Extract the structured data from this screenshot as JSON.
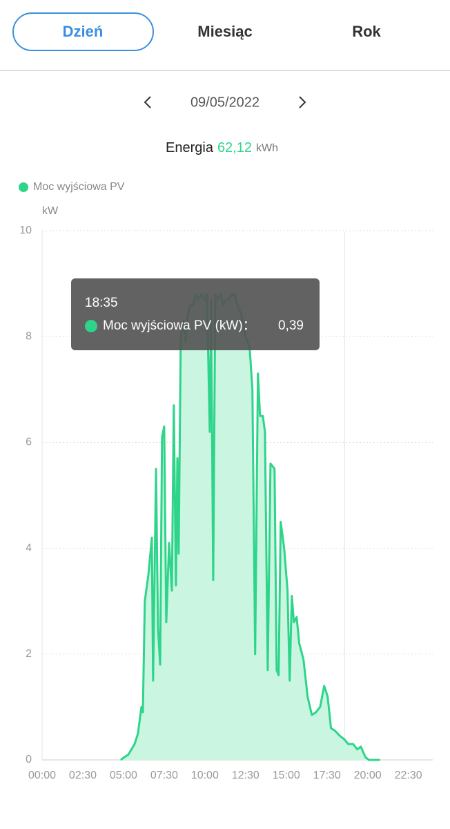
{
  "tabs": [
    "Dzień",
    "Miesiąc",
    "Rok"
  ],
  "date": "09/05/2022",
  "energy": {
    "label": "Energia",
    "value": "62,12",
    "unit": "kWh"
  },
  "chart_data": {
    "type": "area",
    "y_label": "kW",
    "xlim": [
      0,
      24
    ],
    "xticks": [
      {
        "value": 0,
        "label": "00:00"
      },
      {
        "value": 2.5,
        "label": "02:30"
      },
      {
        "value": 5,
        "label": "05:00"
      },
      {
        "value": 7.5,
        "label": "07:30"
      },
      {
        "value": 10,
        "label": "10:00"
      },
      {
        "value": 12.5,
        "label": "12:30"
      },
      {
        "value": 15,
        "label": "15:00"
      },
      {
        "value": 17.5,
        "label": "17:30"
      },
      {
        "value": 20,
        "label": "20:00"
      },
      {
        "value": 22.5,
        "label": "22:30"
      }
    ],
    "ylim": [
      0,
      10
    ],
    "yticks": [
      0,
      2,
      4,
      6,
      8,
      10
    ],
    "grid": true,
    "x": [
      4.83,
      5.04,
      5.3,
      5.68,
      5.89,
      6.1,
      6.19,
      6.31,
      6.53,
      6.74,
      6.82,
      7.0,
      7.12,
      7.25,
      7.37,
      7.5,
      7.63,
      7.8,
      7.97,
      8.09,
      8.22,
      8.31,
      8.39,
      8.52,
      8.69,
      8.81,
      8.94,
      9.11,
      9.28,
      9.45,
      9.62,
      9.79,
      9.96,
      10.13,
      10.3,
      10.38,
      10.51,
      10.64,
      10.8,
      10.97,
      11.14,
      11.31,
      11.48,
      11.65,
      11.82,
      11.99,
      12.25,
      12.5,
      12.75,
      12.92,
      13.09,
      13.26,
      13.39,
      13.56,
      13.69,
      13.86,
      14.03,
      14.28,
      14.41,
      14.53,
      14.66,
      14.87,
      15.08,
      15.21,
      15.34,
      15.47,
      15.64,
      15.8,
      16.06,
      16.31,
      16.57,
      16.82,
      17.08,
      17.33,
      17.54,
      17.75,
      18.0,
      18.31,
      18.56,
      18.81,
      19.11,
      19.36,
      19.58,
      19.87,
      20.08,
      20.76
    ],
    "series": [
      {
        "name": "Moc wyjściowa PV",
        "color": "#2ed48a",
        "fill": "#c9f5e1",
        "values": [
          0,
          0.05,
          0.1,
          0.3,
          0.5,
          1.0,
          0.9,
          3.0,
          3.5,
          4.2,
          1.5,
          5.5,
          2.5,
          1.8,
          6.1,
          6.3,
          2.6,
          4.1,
          3.2,
          6.7,
          3.3,
          5.7,
          3.9,
          8.0,
          8.3,
          7.9,
          8.4,
          8.6,
          8.6,
          8.8,
          8.7,
          8.8,
          8.7,
          8.8,
          6.2,
          8.7,
          3.4,
          8.8,
          8.7,
          8.8,
          8.6,
          8.7,
          8.7,
          8.8,
          8.8,
          8.6,
          8.4,
          8.0,
          7.8,
          7.0,
          2.0,
          7.3,
          6.5,
          6.5,
          6.2,
          1.7,
          5.6,
          5.5,
          1.7,
          1.6,
          4.5,
          4.0,
          3.2,
          1.5,
          3.1,
          2.6,
          2.7,
          2.2,
          1.9,
          1.2,
          0.85,
          0.9,
          1.0,
          1.4,
          1.2,
          0.6,
          0.55,
          0.45,
          0.39,
          0.3,
          0.3,
          0.2,
          0.25,
          0.05,
          0,
          0
        ]
      }
    ],
    "tooltip": {
      "x": 18.5833,
      "title": "18:35",
      "series": "Moc wyjściowa PV (kW)：",
      "value": "0,39"
    }
  }
}
